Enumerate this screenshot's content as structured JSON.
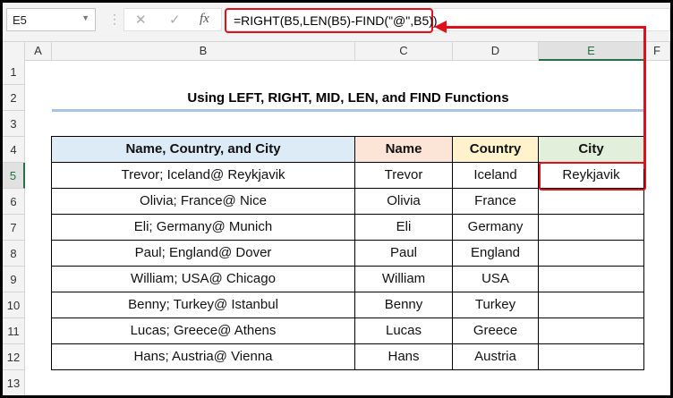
{
  "formula_bar": {
    "name_box": "E5",
    "cancel_icon": "✕",
    "enter_icon": "✓",
    "fx_label": "fx",
    "formula": "=RIGHT(B5,LEN(B5)-FIND(\"@\",B5))"
  },
  "columns": [
    "A",
    "B",
    "C",
    "D",
    "E",
    "F"
  ],
  "rows": [
    "1",
    "2",
    "3",
    "4",
    "5",
    "6",
    "7",
    "8",
    "9",
    "10",
    "11",
    "12",
    "13"
  ],
  "selected_cell": "E5",
  "title": "Using LEFT, RIGHT, MID, LEN, and FIND Functions",
  "table": {
    "headers": [
      "Name, Country, and City",
      "Name",
      "Country",
      "City"
    ],
    "header_colors": [
      "#DDEBF7",
      "#FCE4D6",
      "#FFF2CC",
      "#E2EFDA"
    ],
    "rows": [
      [
        "Trevor; Iceland@ Reykjavik",
        "Trevor",
        "Iceland",
        "Reykjavik"
      ],
      [
        "Olivia; France@ Nice",
        "Olivia",
        "France",
        ""
      ],
      [
        "Eli; Germany@ Munich",
        "Eli",
        "Germany",
        ""
      ],
      [
        "Paul; England@ Dover",
        "Paul",
        "England",
        ""
      ],
      [
        "William; USA@ Chicago",
        "William",
        "USA",
        ""
      ],
      [
        "Benny; Turkey@ Istanbul",
        "Benny",
        "Turkey",
        ""
      ],
      [
        "Lucas; Greece@ Athens",
        "Lucas",
        "Greece",
        ""
      ],
      [
        "Hans; Austria@ Vienna",
        "Hans",
        "Austria",
        ""
      ]
    ]
  },
  "annotation_color": "#E0101A"
}
